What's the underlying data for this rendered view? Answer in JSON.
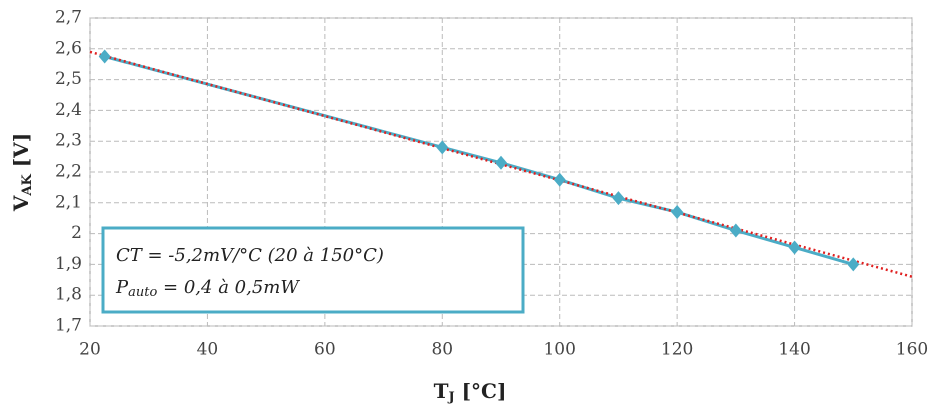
{
  "chart_data": {
    "type": "line",
    "x": [
      22.5,
      80,
      90,
      100,
      110,
      120,
      130,
      140,
      150
    ],
    "series": [
      {
        "color": "#4bacc6",
        "values": [
          2.575,
          2.28,
          2.23,
          2.175,
          2.115,
          2.07,
          2.01,
          1.955,
          1.9
        ]
      }
    ],
    "trendline": {
      "x": [
        20,
        160
      ],
      "values": [
        2.59,
        1.86
      ],
      "color": "#e02020"
    },
    "xlim": [
      20,
      160
    ],
    "xticks": [
      20,
      40,
      60,
      80,
      100,
      120,
      140,
      160
    ],
    "ylim": [
      1.7,
      2.7
    ],
    "yticks": [
      {
        "value": 1.7,
        "label": "1,7"
      },
      {
        "value": 1.8,
        "label": "1,8"
      },
      {
        "value": 1.9,
        "label": "1,9"
      },
      2,
      {
        "value": 2.1,
        "label": "2,1"
      },
      {
        "value": 2.2,
        "label": "2,2"
      },
      {
        "value": 2.3,
        "label": "2,3"
      },
      {
        "value": 2.4,
        "label": "2,4"
      },
      {
        "value": 2.5,
        "label": "2,5"
      },
      {
        "value": 2.6,
        "label": "2,6"
      },
      {
        "value": 2.7,
        "label": "2,7"
      }
    ],
    "grid": true,
    "y_label": {
      "main": "V",
      "sub": "AK",
      "unit": "[V]"
    },
    "x_label": {
      "main": "T",
      "sub": "J",
      "unit": "[°C]"
    },
    "annotation": {
      "line1": "CT = -5,2mV/°C (20 à 150°C)",
      "line2_main": "P",
      "line2_sub": "auto",
      "line2_rest": "= 0,4 à 0,5mW"
    }
  }
}
